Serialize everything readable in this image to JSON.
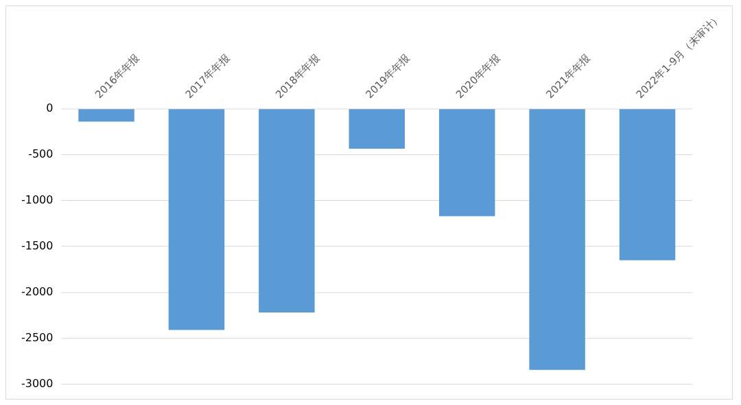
{
  "chart_data": {
    "type": "bar",
    "categories": [
      "2016年年报",
      "2017年年报",
      "2018年年报",
      "2019年年报",
      "2020年年报",
      "2021年年报",
      "2022年1-9月（未审计）"
    ],
    "values": [
      -140,
      -2410,
      -2220,
      -435,
      -1170,
      -2845,
      -1650
    ],
    "color": "#5b9bd5",
    "ylim": [
      -3000,
      0
    ],
    "yticks": [
      -3000,
      -2500,
      -2000,
      -1500,
      -1000,
      -500,
      0
    ],
    "grid": "y",
    "legend": false
  }
}
